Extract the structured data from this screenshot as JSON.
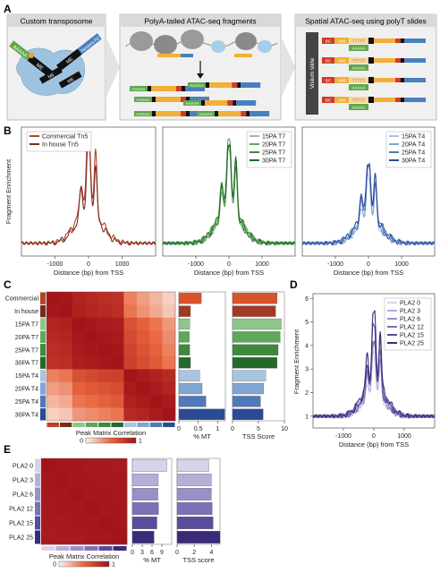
{
  "panels": {
    "A": {
      "letter": "A",
      "box1_title": "Custom transposome",
      "box2_title": "PolyA-tailed ATAC-seq fragments",
      "box3_title": "Spatial ATAC-seq using polyT slides",
      "adapter_polyA": "AAAAA",
      "adapter_nextera": "Nextera R2",
      "me_label": "ME",
      "slide_label": "Visium slide",
      "bc_label": "BC",
      "umi_label": "UMI",
      "polyT_label": "TTTTT",
      "polyA_label": "AAAAA"
    },
    "B": {
      "letter": "B"
    },
    "C": {
      "letter": "C"
    },
    "D": {
      "letter": "D"
    },
    "E": {
      "letter": "E"
    }
  },
  "colors": {
    "tn5_commercial": "#b5432a",
    "tn5_inhouse": "#7a2c1c",
    "t7": [
      "#8fc58a",
      "#5ea85a",
      "#3d8a3c",
      "#236a2a"
    ],
    "t4": [
      "#a8c4e0",
      "#7fa6d2",
      "#4f79ba",
      "#2b4a96"
    ],
    "pla2": [
      "#d8d3ea",
      "#b7aed8",
      "#9a8fc8",
      "#7c6fb6",
      "#5b4b9c",
      "#3b2a78"
    ],
    "heat_low": "#fbf3ee",
    "heat_high": "#a3141a"
  },
  "chart_data": [
    {
      "id": "B1",
      "type": "line",
      "xlabel": "Distance (bp) from TSS",
      "ylabel": "Fragment Enrichment",
      "xlim": [
        -2000,
        2000
      ],
      "xticks": [
        -1000,
        0,
        1000
      ],
      "legend_position": "top-left",
      "series": [
        {
          "name": "Commercial Tn5",
          "color": "#b5432a"
        },
        {
          "name": "In house Tn5",
          "color": "#7a2c1c"
        }
      ]
    },
    {
      "id": "B2",
      "type": "line",
      "xlabel": "Distance (bp) from TSS",
      "xlim": [
        -2000,
        2000
      ],
      "xticks": [
        -1000,
        0,
        1000
      ],
      "legend_position": "top-right",
      "series": [
        {
          "name": "15PA T7",
          "color": "#8fc58a"
        },
        {
          "name": "20PA T7",
          "color": "#5ea85a"
        },
        {
          "name": "25PA T7",
          "color": "#3d8a3c"
        },
        {
          "name": "30PA T7",
          "color": "#236a2a"
        }
      ]
    },
    {
      "id": "B3",
      "type": "line",
      "xlabel": "Distance (bp) from TSS",
      "xlim": [
        -2000,
        2000
      ],
      "xticks": [
        -1000,
        0,
        1000
      ],
      "legend_position": "top-right",
      "series": [
        {
          "name": "15PA T4",
          "color": "#a8c4e0"
        },
        {
          "name": "20PA T4",
          "color": "#7fa6d2"
        },
        {
          "name": "25PA T4",
          "color": "#4f79ba"
        },
        {
          "name": "30PA T4",
          "color": "#2b4a96"
        }
      ]
    },
    {
      "id": "C_heat",
      "type": "heatmap",
      "rows": [
        "Commercial",
        "In house",
        "15PA T7",
        "20PA T7",
        "25PA T7",
        "30PA T7",
        "15PA T4",
        "20PA T4",
        "25PA T4",
        "30PA T4"
      ],
      "xlabel": "Peak Matrix Correlation",
      "colorbar_ticks": [
        0,
        1
      ],
      "values": [
        [
          1.0,
          0.98,
          0.9,
          0.87,
          0.84,
          0.82,
          0.4,
          0.3,
          0.22,
          0.12
        ],
        [
          0.98,
          1.0,
          0.92,
          0.89,
          0.86,
          0.84,
          0.44,
          0.34,
          0.26,
          0.16
        ],
        [
          0.9,
          0.92,
          1.0,
          0.98,
          0.96,
          0.94,
          0.62,
          0.52,
          0.44,
          0.32
        ],
        [
          0.87,
          0.89,
          0.98,
          1.0,
          0.98,
          0.96,
          0.66,
          0.56,
          0.48,
          0.36
        ],
        [
          0.84,
          0.86,
          0.96,
          0.98,
          1.0,
          0.98,
          0.7,
          0.6,
          0.52,
          0.4
        ],
        [
          0.82,
          0.84,
          0.94,
          0.96,
          0.98,
          1.0,
          0.72,
          0.64,
          0.56,
          0.44
        ],
        [
          0.4,
          0.44,
          0.62,
          0.66,
          0.7,
          0.72,
          1.0,
          0.96,
          0.92,
          0.86
        ],
        [
          0.3,
          0.34,
          0.52,
          0.56,
          0.6,
          0.64,
          0.96,
          1.0,
          0.96,
          0.9
        ],
        [
          0.22,
          0.26,
          0.44,
          0.48,
          0.52,
          0.56,
          0.92,
          0.96,
          1.0,
          0.96
        ],
        [
          0.12,
          0.16,
          0.32,
          0.36,
          0.4,
          0.44,
          0.86,
          0.9,
          0.96,
          1.0
        ]
      ]
    },
    {
      "id": "C_mt",
      "type": "bar",
      "orientation": "horizontal",
      "xlabel": "% MT",
      "xlim": [
        0,
        1.2
      ],
      "xticks": [
        0,
        0.5,
        1
      ],
      "values": [
        0.58,
        0.3,
        0.28,
        0.27,
        0.28,
        0.3,
        0.54,
        0.6,
        0.7,
        1.18
      ]
    },
    {
      "id": "C_tss",
      "type": "bar",
      "orientation": "horizontal",
      "xlabel": "TSS Score",
      "xlim": [
        0,
        10
      ],
      "xticks": [
        0,
        5,
        10
      ],
      "values": [
        8.6,
        8.3,
        9.4,
        9.2,
        8.8,
        8.6,
        6.4,
        6.0,
        5.4,
        5.9
      ]
    },
    {
      "id": "D",
      "type": "line",
      "xlabel": "Distance (bp) from TSS",
      "ylabel": "Fragment Enrichment",
      "xlim": [
        -2000,
        2000
      ],
      "xticks": [
        -1000,
        0,
        1000
      ],
      "ylim": [
        0.5,
        6.2
      ],
      "yticks": [
        1,
        2,
        3,
        4,
        5,
        6
      ],
      "legend_position": "top-right",
      "series": [
        {
          "name": "PLA2 0",
          "color": "#d8d3ea",
          "peak": 3.6
        },
        {
          "name": "PLA2 3",
          "color": "#b7aed8",
          "peak": 3.9
        },
        {
          "name": "PLA2 6",
          "color": "#9a8fc8",
          "peak": 4.1
        },
        {
          "name": "PLA2 12",
          "color": "#7c6fb6",
          "peak": 4.3
        },
        {
          "name": "PLA2 15",
          "color": "#5b4b9c",
          "peak": 4.8
        },
        {
          "name": "PLA2 25",
          "color": "#3b2a78",
          "peak": 5.3
        }
      ]
    },
    {
      "id": "E_heat",
      "type": "heatmap",
      "rows": [
        "PLA2 0",
        "PLA2 3",
        "PLA2 6",
        "PLA2 12",
        "PLA2 15",
        "PLA2 25"
      ],
      "xlabel": "Peak Matrix Correlation",
      "colorbar_ticks": [
        0,
        1
      ],
      "values": [
        [
          1.0,
          0.98,
          0.98,
          0.97,
          0.97,
          0.96
        ],
        [
          0.98,
          1.0,
          0.98,
          0.98,
          0.97,
          0.97
        ],
        [
          0.98,
          0.98,
          1.0,
          0.98,
          0.98,
          0.97
        ],
        [
          0.97,
          0.98,
          0.98,
          1.0,
          0.98,
          0.98
        ],
        [
          0.97,
          0.97,
          0.98,
          0.98,
          1.0,
          0.98
        ],
        [
          0.96,
          0.97,
          0.97,
          0.98,
          0.98,
          1.0
        ]
      ]
    },
    {
      "id": "E_mt",
      "type": "bar",
      "orientation": "horizontal",
      "xlabel": "% MT",
      "xlim": [
        0,
        12
      ],
      "xticks": [
        0,
        3,
        6,
        9
      ],
      "values": [
        10.5,
        7.9,
        7.8,
        8.0,
        7.5,
        6.6
      ]
    },
    {
      "id": "E_tss",
      "type": "bar",
      "orientation": "horizontal",
      "xlabel": "TSS score",
      "xlim": [
        0,
        5
      ],
      "xticks": [
        0,
        2,
        4
      ],
      "values": [
        3.7,
        4.0,
        4.0,
        4.1,
        4.2,
        5.0
      ]
    }
  ]
}
